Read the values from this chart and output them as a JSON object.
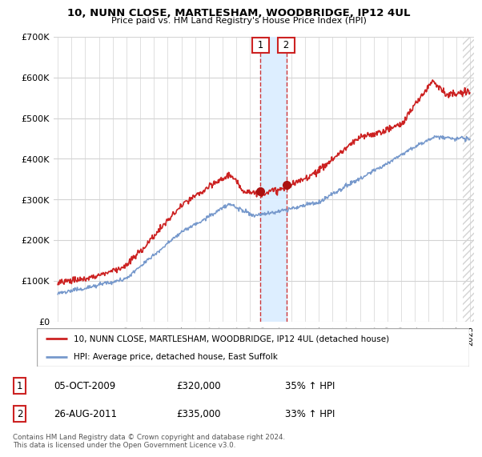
{
  "title": "10, NUNN CLOSE, MARTLESHAM, WOODBRIDGE, IP12 4UL",
  "subtitle": "Price paid vs. HM Land Registry's House Price Index (HPI)",
  "ylim": [
    0,
    700000
  ],
  "xlim_start": 1994.7,
  "xlim_end": 2025.3,
  "hpi_color": "#7799cc",
  "price_color": "#cc2222",
  "shade_color": "#ddeeff",
  "marker_color": "#aa1111",
  "transaction1": {
    "date_num": 2009.76,
    "price": 320000,
    "label": "1",
    "date_str": "05-OCT-2009",
    "pct": "35%"
  },
  "transaction2": {
    "date_num": 2011.65,
    "price": 335000,
    "label": "2",
    "date_str": "26-AUG-2011",
    "pct": "33%"
  },
  "legend_line1": "10, NUNN CLOSE, MARTLESHAM, WOODBRIDGE, IP12 4UL (detached house)",
  "legend_line2": "HPI: Average price, detached house, East Suffolk",
  "footnote": "Contains HM Land Registry data © Crown copyright and database right 2024.\nThis data is licensed under the Open Government Licence v3.0.",
  "table_rows": [
    [
      "1",
      "05-OCT-2009",
      "£320,000",
      "35% ↑ HPI"
    ],
    [
      "2",
      "26-AUG-2011",
      "£335,000",
      "33% ↑ HPI"
    ]
  ],
  "hatch_start": 2024.5,
  "background_color": "#ffffff"
}
